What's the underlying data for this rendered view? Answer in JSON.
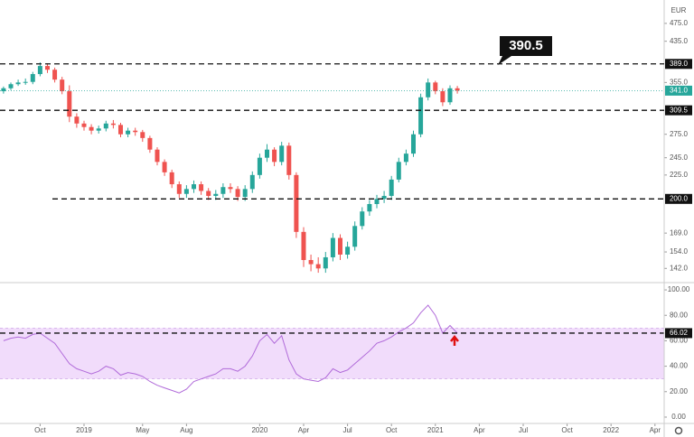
{
  "chart_data": [
    {
      "type": "candlestick",
      "unit": "EUR",
      "x": [
        -5.5,
        -5,
        -4.5,
        -4,
        -3.5,
        -3,
        -2.5,
        -2,
        -1.5,
        -1,
        -0.5,
        0,
        0.5,
        1,
        1.5,
        2,
        2.5,
        3,
        3.5,
        4,
        4.5,
        5,
        5.5,
        6,
        6.5,
        7,
        7.5,
        8,
        8.5,
        9,
        9.5,
        10,
        10.5,
        11,
        11.5,
        12,
        12.5,
        13,
        13.5,
        14,
        14.5,
        15,
        15.5,
        16,
        16.5,
        17,
        17.5,
        18,
        18.5,
        19,
        19.5,
        20,
        20.5,
        21,
        21.5,
        22,
        22.5,
        23,
        23.5,
        24,
        24.5,
        25,
        25.5
      ],
      "open": [
        340,
        345,
        352,
        355,
        356,
        370,
        385,
        378,
        360,
        340,
        300,
        290,
        285,
        280,
        283,
        290,
        288,
        275,
        280,
        278,
        270,
        255,
        240,
        228,
        215,
        205,
        210,
        215,
        208,
        203,
        205,
        212,
        210,
        202,
        210,
        225,
        245,
        255,
        240,
        260,
        225,
        170,
        148,
        145,
        142,
        150,
        165,
        152,
        158,
        175,
        188,
        195,
        200,
        203,
        220,
        240,
        250,
        275,
        330,
        355,
        340,
        322,
        345
      ],
      "high": [
        348,
        355,
        360,
        362,
        374,
        392,
        390,
        382,
        365,
        350,
        305,
        294,
        289,
        287,
        294,
        295,
        291,
        284,
        284,
        281,
        273,
        258,
        243,
        231,
        218,
        214,
        219,
        218,
        211,
        209,
        216,
        216,
        213,
        214,
        229,
        250,
        262,
        258,
        265,
        264,
        228,
        174,
        152,
        150,
        154,
        169,
        168,
        162,
        179,
        192,
        199,
        204,
        208,
        224,
        245,
        255,
        280,
        336,
        362,
        358,
        345,
        350,
        349
      ],
      "low": [
        336,
        342,
        349,
        351,
        352,
        366,
        372,
        355,
        335,
        292,
        284,
        280,
        275,
        276,
        279,
        283,
        271,
        271,
        273,
        265,
        251,
        236,
        224,
        211,
        201,
        201,
        206,
        204,
        199,
        199,
        201,
        206,
        198,
        198,
        206,
        221,
        240,
        235,
        236,
        220,
        165,
        143,
        140,
        139,
        139,
        147,
        148,
        149,
        155,
        172,
        184,
        191,
        196,
        199,
        217,
        236,
        246,
        271,
        325,
        335,
        316,
        318,
        336
      ],
      "close": [
        345,
        352,
        355,
        356,
        370,
        385,
        378,
        360,
        340,
        300,
        290,
        285,
        280,
        283,
        290,
        288,
        275,
        280,
        278,
        270,
        255,
        240,
        228,
        215,
        205,
        210,
        215,
        208,
        203,
        205,
        212,
        210,
        202,
        210,
        225,
        245,
        255,
        240,
        260,
        225,
        170,
        148,
        145,
        142,
        150,
        165,
        152,
        158,
        175,
        188,
        195,
        200,
        203,
        220,
        240,
        250,
        275,
        330,
        355,
        340,
        322,
        345,
        341
      ],
      "up_color": "#26a69a",
      "down_color": "#ef5350",
      "ylim": [
        133,
        533
      ],
      "ylog": true,
      "yticks": [
        {
          "value": 142,
          "label": "142.0"
        },
        {
          "value": 154,
          "label": "154.0"
        },
        {
          "value": 169,
          "label": "169.0"
        },
        {
          "value": 225,
          "label": "225.0"
        },
        {
          "value": 245,
          "label": "245.0"
        },
        {
          "value": 275,
          "label": "275.0"
        },
        {
          "value": 355,
          "label": "355.0"
        },
        {
          "value": 435,
          "label": "435.0"
        },
        {
          "value": 475,
          "label": "475.0"
        }
      ],
      "xlim": [
        -5.74,
        39.63
      ],
      "xticks": [
        {
          "value": -3,
          "label": "Oct"
        },
        {
          "value": 0,
          "label": "2019"
        },
        {
          "value": 4,
          "label": "May"
        },
        {
          "value": 7,
          "label": "Aug"
        },
        {
          "value": 12,
          "label": "2020"
        },
        {
          "value": 15,
          "label": "Apr"
        },
        {
          "value": 18,
          "label": "Jul"
        },
        {
          "value": 21,
          "label": "Oct"
        },
        {
          "value": 24,
          "label": "2021"
        },
        {
          "value": 27,
          "label": "Apr"
        },
        {
          "value": 30,
          "label": "Jul"
        },
        {
          "value": 33,
          "label": "Oct"
        },
        {
          "value": 36,
          "label": "2022"
        },
        {
          "value": 39,
          "label": "Apr"
        }
      ],
      "levels": [
        {
          "value": 389,
          "label": "389.0"
        },
        {
          "value": 309.5,
          "label": "309.5"
        },
        {
          "value": 200,
          "label": "200.0"
        }
      ],
      "current": {
        "value": 341,
        "label": "341.0",
        "color": "#26a69a"
      },
      "annotation": "390.5"
    },
    {
      "type": "line",
      "color": "#b06ad9",
      "x": [
        -5.5,
        -5,
        -4.5,
        -4,
        -3.5,
        -3,
        -2.5,
        -2,
        -1.5,
        -1,
        -0.5,
        0,
        0.5,
        1,
        1.5,
        2,
        2.5,
        3,
        3.5,
        4,
        4.5,
        5,
        5.5,
        6,
        6.5,
        7,
        7.5,
        8,
        8.5,
        9,
        9.5,
        10,
        10.5,
        11,
        11.5,
        12,
        12.5,
        13,
        13.5,
        14,
        14.5,
        15,
        15.5,
        16,
        16.5,
        17,
        17.5,
        18,
        18.5,
        19,
        19.5,
        20,
        20.5,
        21,
        21.5,
        22,
        22.5,
        23,
        23.5,
        24,
        24.5,
        25,
        25.5
      ],
      "values": [
        60,
        62,
        63,
        62,
        65,
        66,
        62,
        58,
        50,
        42,
        38,
        36,
        34,
        36,
        40,
        38,
        33,
        35,
        34,
        32,
        28,
        25,
        23,
        21,
        19,
        22,
        28,
        30,
        32,
        34,
        38,
        38,
        36,
        40,
        48,
        60,
        65,
        58,
        64,
        45,
        34,
        30,
        29,
        28,
        31,
        38,
        35,
        37,
        42,
        47,
        52,
        58,
        60,
        63,
        67,
        70,
        74,
        82,
        88,
        80,
        66,
        72,
        66
      ],
      "band": [
        30,
        70
      ],
      "band_color": "#f1dcfb",
      "ylim": [
        -5.7,
        104.3
      ],
      "yticks": [
        {
          "value": 0,
          "label": "0.00"
        },
        {
          "value": 20,
          "label": "20.00"
        },
        {
          "value": 40,
          "label": "40.00"
        },
        {
          "value": 60,
          "label": "60.00"
        },
        {
          "value": 80,
          "label": "80.00"
        },
        {
          "value": 100,
          "label": "100.00"
        }
      ],
      "level": {
        "value": 66.02,
        "label": "66.02"
      }
    }
  ]
}
